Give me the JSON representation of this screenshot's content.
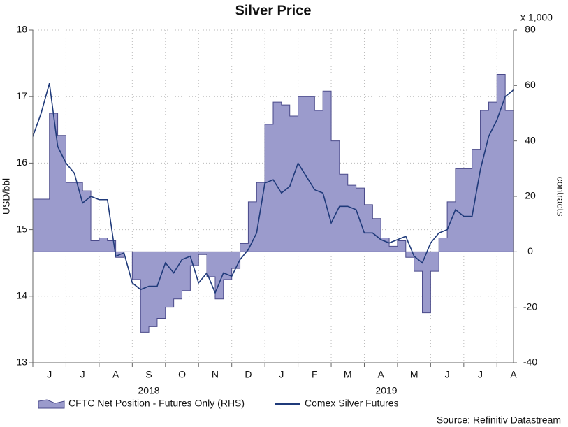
{
  "chart_data": {
    "type": "area_line",
    "title": "Silver Price",
    "y_label": "USD/bbl",
    "y2_label": "contracts",
    "y2_unit": "x 1,000",
    "source": "Source: Refinitiv Datastream",
    "years": [
      "2018",
      "2019"
    ],
    "categories": [
      null,
      null,
      "J",
      null,
      null,
      null,
      "J",
      null,
      null,
      null,
      "A",
      null,
      null,
      null,
      "S",
      null,
      null,
      null,
      "O",
      null,
      null,
      null,
      "N",
      null,
      null,
      null,
      "D",
      null,
      null,
      null,
      "J",
      null,
      null,
      null,
      "F",
      null,
      null,
      null,
      "M",
      null,
      null,
      null,
      "A",
      null,
      null,
      null,
      "M",
      null,
      null,
      null,
      "J",
      null,
      null,
      null,
      "J",
      null,
      null,
      null,
      "A"
    ],
    "ylim": [
      13,
      18
    ],
    "yticks": [
      13,
      14,
      15,
      16,
      17,
      18
    ],
    "y2lim": [
      -40,
      80
    ],
    "y2ticks": [
      -40,
      -20,
      0,
      20,
      40,
      60,
      80
    ],
    "grid": true,
    "series": [
      {
        "name": "CFTC Net Position - Futures Only (RHS)",
        "color": "#9b9bcc",
        "axis": "y2",
        "values": [
          19,
          19,
          50,
          42,
          25,
          25,
          22,
          4,
          5,
          4,
          -2,
          0,
          -10,
          -29,
          -27,
          -24,
          -20,
          -17,
          -14,
          -5,
          -1,
          -9,
          -17,
          -10,
          -6,
          3,
          18,
          25,
          46,
          54,
          53,
          49,
          56,
          56,
          51,
          58,
          40,
          28,
          24,
          23,
          17,
          12,
          5,
          2,
          4,
          -2,
          -7,
          -22,
          -7,
          5,
          18,
          30,
          30,
          37,
          51,
          54,
          64,
          51,
          40
        ]
      },
      {
        "name": "Comex Silver Futures",
        "color": "#1f3a7a",
        "axis": "y",
        "values": [
          16.4,
          16.75,
          17.2,
          16.25,
          16.0,
          15.85,
          15.4,
          15.5,
          15.45,
          15.45,
          14.6,
          14.65,
          14.2,
          14.1,
          14.15,
          14.15,
          14.5,
          14.35,
          14.55,
          14.6,
          14.2,
          14.35,
          14.05,
          14.35,
          14.3,
          14.55,
          14.7,
          14.95,
          15.7,
          15.75,
          15.55,
          15.65,
          16.0,
          15.8,
          15.6,
          15.55,
          15.1,
          15.35,
          15.35,
          15.3,
          14.95,
          14.95,
          14.85,
          14.8,
          14.85,
          14.9,
          14.6,
          14.5,
          14.8,
          14.95,
          15.0,
          15.3,
          15.2,
          15.2,
          15.9,
          16.4,
          16.65,
          17.0,
          17.1
        ]
      }
    ]
  }
}
